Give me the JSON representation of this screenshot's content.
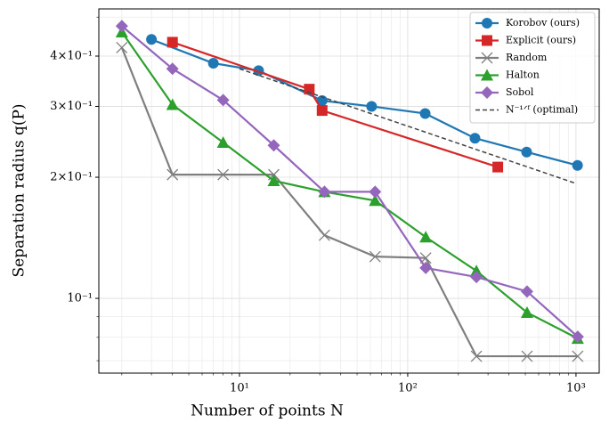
{
  "chart_data": {
    "type": "line",
    "x_label": "Number of points N",
    "y_label": "Separation radius q(P)",
    "xscale": "log",
    "yscale": "log",
    "grid": true,
    "legend": "upper right",
    "xlim": [
      1.46,
      1374
    ],
    "ylim": [
      0.0652,
      0.524
    ],
    "xticks": [
      {
        "value": 10,
        "label": "10¹"
      },
      {
        "value": 100,
        "label": "10²"
      },
      {
        "value": 1000,
        "label": "10³"
      }
    ],
    "xticks_minor": [
      2,
      3,
      4,
      5,
      6,
      7,
      8,
      9,
      20,
      30,
      40,
      50,
      60,
      70,
      80,
      90,
      200,
      300,
      400,
      500,
      600,
      700,
      800,
      900
    ],
    "yticks": [
      {
        "value": 0.1,
        "label": "10⁻¹"
      },
      {
        "value": 0.2,
        "label": "2×10⁻¹"
      },
      {
        "value": 0.3,
        "label": "3×10⁻¹"
      },
      {
        "value": 0.4,
        "label": "4×10⁻¹"
      }
    ],
    "yticks_minor": [
      0.07,
      0.08,
      0.09,
      0.5
    ],
    "series": [
      {
        "name": "Korobov (ours)",
        "color": "#1f77b4",
        "marker": "circle",
        "x": [
          3,
          7,
          13,
          31,
          61,
          127,
          251,
          509,
          1021
        ],
        "values": [
          0.44,
          0.384,
          0.368,
          0.31,
          0.3,
          0.288,
          0.25,
          0.231,
          0.214
        ]
      },
      {
        "name": "Explicit (ours)",
        "color": "#d62728",
        "marker": "square",
        "x": [
          4,
          26,
          31,
          343
        ],
        "values": [
          0.433,
          0.331,
          0.293,
          0.212
        ]
      },
      {
        "name": "Random",
        "color": "#7f7f7f",
        "marker": "x",
        "x": [
          2,
          4,
          8,
          16,
          32,
          64,
          128,
          256,
          512,
          1024
        ],
        "values": [
          0.42,
          0.203,
          0.203,
          0.203,
          0.1435,
          0.127,
          0.126,
          0.0718,
          0.0718,
          0.0718
        ]
      },
      {
        "name": "Halton",
        "color": "#2ca02c",
        "marker": "triangle",
        "x": [
          2,
          4,
          8,
          16,
          32,
          64,
          128,
          256,
          512,
          1024
        ],
        "values": [
          0.459,
          0.303,
          0.244,
          0.196,
          0.184,
          0.175,
          0.142,
          0.117,
          0.0922,
          0.0795
        ]
      },
      {
        "name": "Sobol",
        "color": "#9467bd",
        "marker": "diamond",
        "x": [
          2,
          4,
          8,
          16,
          32,
          64,
          128,
          256,
          512,
          1024
        ],
        "values": [
          0.475,
          0.372,
          0.311,
          0.24,
          0.184,
          0.184,
          0.119,
          0.113,
          0.104,
          0.0803
        ]
      },
      {
        "name": "N⁻¹ᐟᶠ (optimal)",
        "color": "#444444",
        "marker": "none",
        "dashed": true,
        "x": [
          10,
          1000
        ],
        "values": [
          0.372,
          0.193
        ]
      }
    ]
  }
}
